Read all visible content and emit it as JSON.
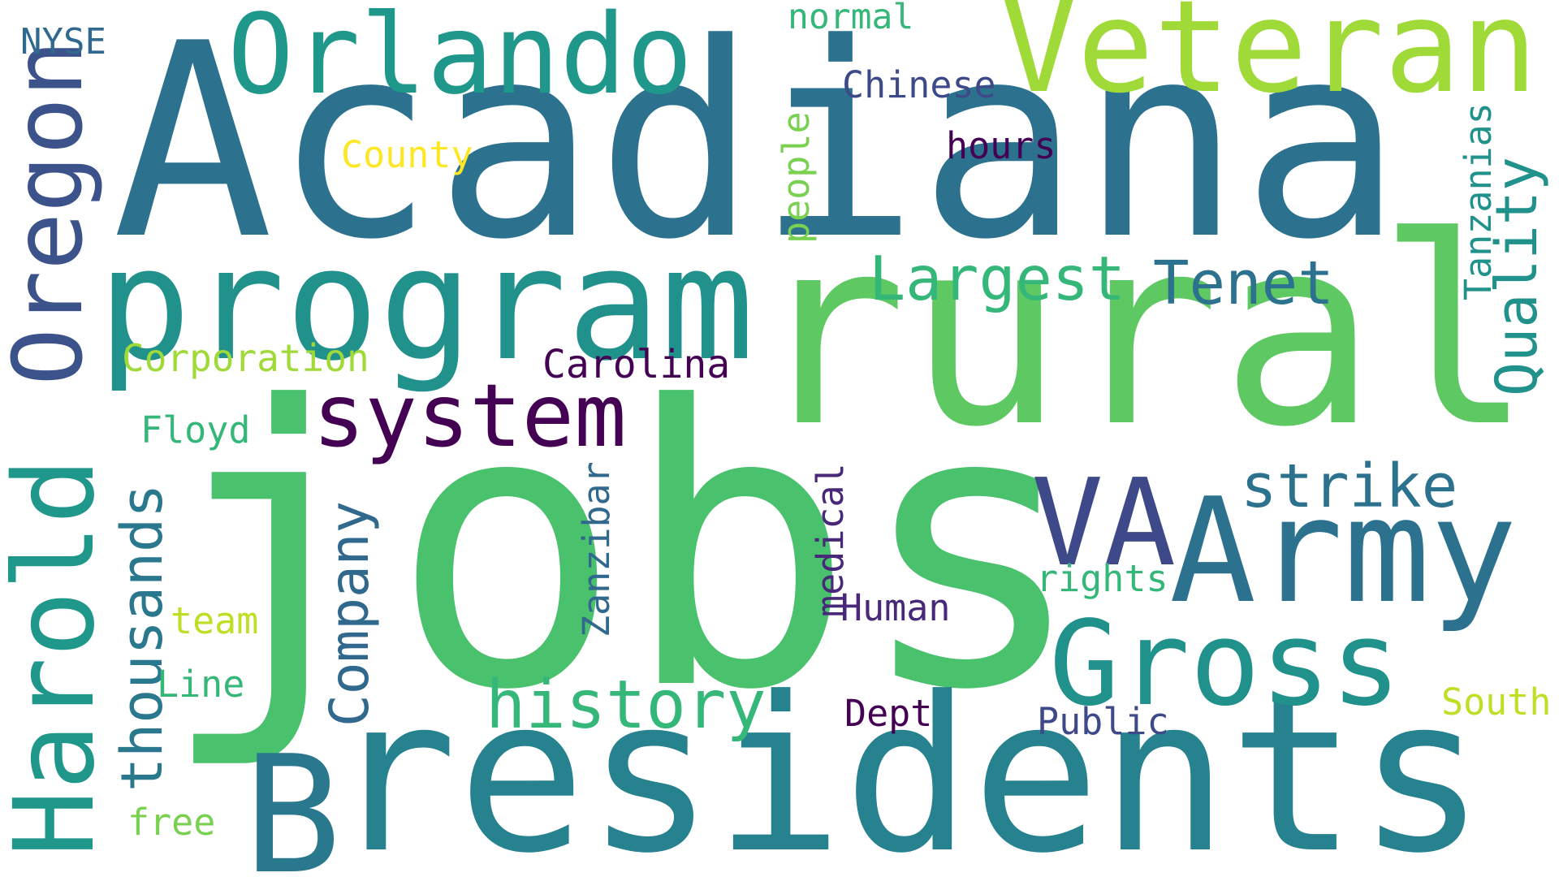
{
  "words": {
    "acadiana": {
      "text": "Acadiana",
      "color": "#2c728e"
    },
    "jobs": {
      "text": "jobs",
      "color": "#4ac16d"
    },
    "rural": {
      "text": "rural",
      "color": "#5ec962"
    },
    "residents": {
      "text": "residents",
      "color": "#26828e"
    },
    "b": {
      "text": "B",
      "color": "#2a788e"
    },
    "program": {
      "text": "program",
      "color": "#21918c"
    },
    "veteran": {
      "text": "Veteran",
      "color": "#a0da39"
    },
    "orlando": {
      "text": "Orlando",
      "color": "#1f988b"
    },
    "harold": {
      "text": "Harold",
      "color": "#1f988b"
    },
    "oregon": {
      "text": "Oregon",
      "color": "#3b528b"
    },
    "army": {
      "text": "Army",
      "color": "#2c728e"
    },
    "gross": {
      "text": "Gross",
      "color": "#21918c"
    },
    "va": {
      "text": "VA",
      "color": "#3e4989"
    },
    "system": {
      "text": "system",
      "color": "#440154"
    },
    "history": {
      "text": "history",
      "color": "#35b779"
    },
    "largest": {
      "text": "Largest",
      "color": "#35b779"
    },
    "tenet": {
      "text": "Tenet",
      "color": "#2c728e"
    },
    "strike": {
      "text": "strike",
      "color": "#2c728e"
    },
    "quality": {
      "text": "Quality",
      "color": "#21918c"
    },
    "thousands": {
      "text": "thousands",
      "color": "#2a788e"
    },
    "company": {
      "text": "Company",
      "color": "#31688e"
    },
    "corporation": {
      "text": "Corporation",
      "color": "#a0da39"
    },
    "carolina": {
      "text": "Carolina",
      "color": "#440154"
    },
    "chinese": {
      "text": "Chinese",
      "color": "#3e4989"
    },
    "county": {
      "text": "County",
      "color": "#fde725"
    },
    "normal": {
      "text": "normal",
      "color": "#35b779"
    },
    "nyse": {
      "text": "NYSE",
      "color": "#31688e"
    },
    "hours": {
      "text": "hours",
      "color": "#440154"
    },
    "people": {
      "text": "people",
      "color": "#7ad151"
    },
    "tanzanias": {
      "text": "Tanzanias",
      "color": "#21918c"
    },
    "floyd": {
      "text": "Floyd",
      "color": "#35b779"
    },
    "zanzibar": {
      "text": "Zanzibar",
      "color": "#31688e"
    },
    "medical": {
      "text": "medical",
      "color": "#482878"
    },
    "human": {
      "text": "Human",
      "color": "#482878"
    },
    "rights": {
      "text": "rights",
      "color": "#35b779"
    },
    "team": {
      "text": "team",
      "color": "#bddf26"
    },
    "line": {
      "text": "Line",
      "color": "#35b779"
    },
    "dept": {
      "text": "Dept",
      "color": "#440154"
    },
    "public": {
      "text": "Public",
      "color": "#3e4989"
    },
    "south": {
      "text": "South",
      "color": "#bddf26"
    },
    "free": {
      "text": "free",
      "color": "#7ad151"
    }
  }
}
